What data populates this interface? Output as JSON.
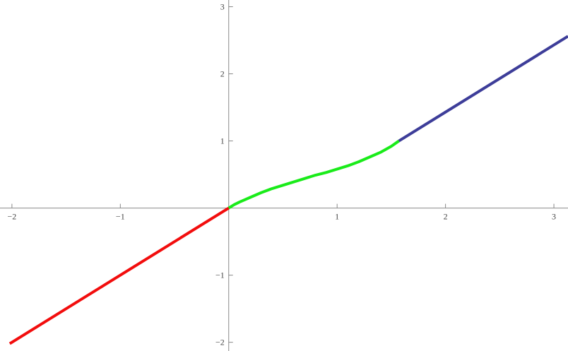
{
  "chart_data": {
    "type": "line",
    "xlim": [
      -2.11,
      3.13
    ],
    "ylim": [
      -2.13,
      3.1
    ],
    "xticks": [
      {
        "value": -2,
        "label": "−2"
      },
      {
        "value": -1,
        "label": "−1"
      },
      1,
      2,
      3
    ],
    "yticks": [
      {
        "value": -2,
        "label": "−2"
      },
      {
        "value": -1,
        "label": "−1"
      },
      1,
      2,
      3
    ],
    "series": [
      {
        "color": "#f20d0d",
        "x": [
          -2.02,
          0
        ],
        "values": [
          -2.02,
          0
        ]
      },
      {
        "color": "#1aeb1a",
        "x": [
          0,
          0.05,
          0.1,
          0.2,
          0.3,
          0.4,
          0.5,
          0.6,
          0.7,
          0.8,
          0.9,
          1.0,
          1.1,
          1.2,
          1.3,
          1.4,
          1.5,
          1.57
        ],
        "values": [
          0,
          0.05,
          0.09,
          0.16,
          0.23,
          0.29,
          0.34,
          0.39,
          0.44,
          0.49,
          0.53,
          0.58,
          0.63,
          0.69,
          0.76,
          0.83,
          0.92,
          1.0
        ]
      },
      {
        "color": "#3d3d99",
        "x": [
          1.57,
          3.13
        ],
        "values": [
          1.0,
          2.56
        ]
      }
    ]
  }
}
